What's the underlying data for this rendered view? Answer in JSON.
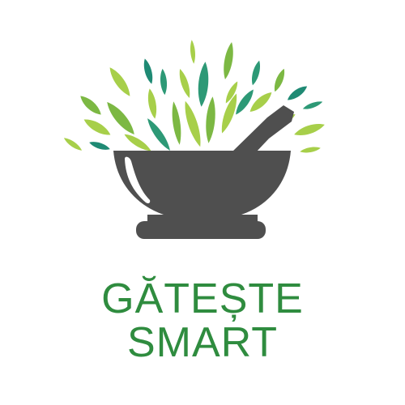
{
  "logo": {
    "line1": "GĂTEȘTE",
    "line2": "SMART",
    "icon": "mortar-and-pestle-with-herbs-icon"
  },
  "colors": {
    "text": "#2f8c3f",
    "mortar": "#4f4f4f",
    "leaf_light": "#a7cf4a",
    "leaf_mid": "#7cb843",
    "leaf_dark": "#2d9976",
    "leaf_teal": "#1f8a74"
  }
}
